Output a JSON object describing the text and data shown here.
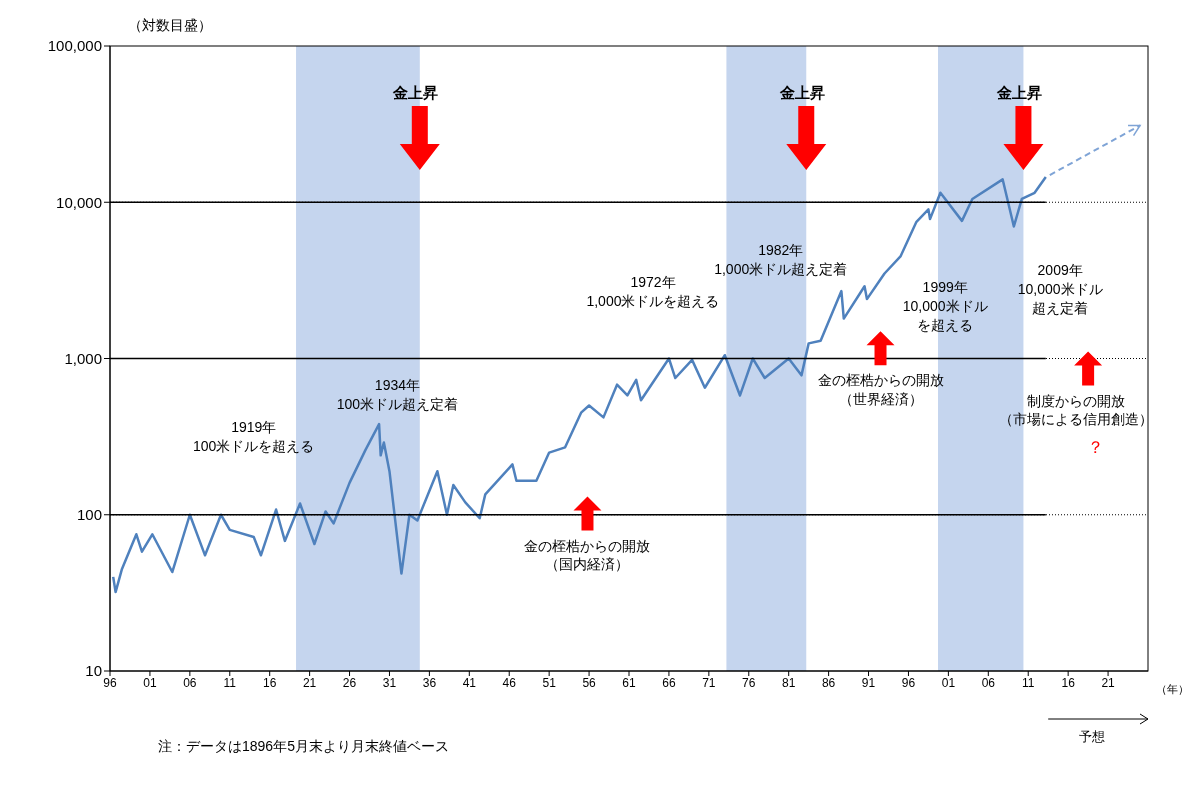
{
  "chart_data": {
    "type": "line",
    "ylabel": "（対数目盛）",
    "xlabel": "（年）",
    "log": "y",
    "marker": "none",
    "grid": "y",
    "xlim": [
      1896,
      2026
    ],
    "xticks": [
      {
        "value": 1896,
        "label": "96"
      },
      {
        "value": 1901,
        "label": "01"
      },
      {
        "value": 1906,
        "label": "06"
      },
      {
        "value": 1911,
        "label": "11"
      },
      {
        "value": 1916,
        "label": "16"
      },
      {
        "value": 1921,
        "label": "21"
      },
      {
        "value": 1926,
        "label": "26"
      },
      {
        "value": 1931,
        "label": "31"
      },
      {
        "value": 1936,
        "label": "36"
      },
      {
        "value": 1941,
        "label": "41"
      },
      {
        "value": 1946,
        "label": "46"
      },
      {
        "value": 1951,
        "label": "51"
      },
      {
        "value": 1956,
        "label": "56"
      },
      {
        "value": 1961,
        "label": "61"
      },
      {
        "value": 1966,
        "label": "66"
      },
      {
        "value": 1971,
        "label": "71"
      },
      {
        "value": 1976,
        "label": "76"
      },
      {
        "value": 1981,
        "label": "81"
      },
      {
        "value": 1986,
        "label": "86"
      },
      {
        "value": 1991,
        "label": "91"
      },
      {
        "value": 1996,
        "label": "96"
      },
      {
        "value": 2001,
        "label": "01"
      },
      {
        "value": 2006,
        "label": "06"
      },
      {
        "value": 2011,
        "label": "11"
      },
      {
        "value": 2016,
        "label": "16"
      },
      {
        "value": 2021,
        "label": "21"
      }
    ],
    "ylim": [
      10,
      100000
    ],
    "yticks": [
      {
        "value": 10,
        "label": "10"
      },
      {
        "value": 100,
        "label": "100"
      },
      {
        "value": 1000,
        "label": "1,000"
      },
      {
        "value": 10000,
        "label": "10,000"
      },
      {
        "value": 100000,
        "label": "100,000"
      }
    ],
    "series": [
      {
        "type": "line",
        "color": "#4f81bd",
        "line_style": "solid",
        "x": [
          1896.4,
          1896.7,
          1897.5,
          1899.3,
          1900,
          1901.3,
          1903.8,
          1906,
          1907.9,
          1909.9,
          1911,
          1914,
          1914.9,
          1916.8,
          1917.9,
          1919.8,
          1921.6,
          1923,
          1924,
          1926,
          1928,
          1929.7,
          1929.9,
          1930.3,
          1931,
          1932.5,
          1933.5,
          1934.5,
          1937,
          1938.2,
          1939,
          1940.5,
          1942.3,
          1943,
          1946.4,
          1946.9,
          1949.4,
          1951,
          1953,
          1955,
          1956,
          1957.8,
          1959.5,
          1960.8,
          1961.9,
          1962.5,
          1966,
          1966.8,
          1968.9,
          1970.5,
          1973,
          1974.9,
          1976.5,
          1978,
          1981,
          1982.6,
          1983.5,
          1985,
          1987.6,
          1987.9,
          1990.5,
          1990.8,
          1993,
          1995,
          1997,
          1998.5,
          1998.7,
          2000,
          2002.7,
          2004,
          2007.8,
          2009.2,
          2010.2,
          2011.8,
          2013.2
        ],
        "values": [
          40,
          32,
          45,
          75,
          58,
          75,
          43,
          100,
          55,
          100,
          80,
          72,
          55,
          108,
          68,
          118,
          65,
          105,
          88,
          160,
          260,
          380,
          240,
          290,
          190,
          42,
          100,
          92,
          190,
          100,
          155,
          120,
          95,
          135,
          210,
          165,
          165,
          250,
          270,
          450,
          500,
          420,
          680,
          580,
          730,
          540,
          1000,
          750,
          980,
          650,
          1050,
          580,
          1000,
          750,
          1000,
          780,
          1250,
          1300,
          2700,
          1800,
          2900,
          2400,
          3500,
          4500,
          7500,
          9000,
          7800,
          11500,
          7600,
          10500,
          14000,
          7000,
          10500,
          11500,
          14500
        ]
      }
    ],
    "bands": [
      {
        "axis": "x",
        "from": 1919.3,
        "to": 1934.8,
        "label": "金上昇",
        "color": "#c5d5ee"
      },
      {
        "axis": "x",
        "from": 1973.2,
        "to": 1983.2,
        "label": "金上昇",
        "color": "#c5d5ee"
      },
      {
        "axis": "x",
        "from": 1999.7,
        "to": 2010.4,
        "label": "金上昇",
        "color": "#c5d5ee"
      }
    ],
    "annotations": [
      "1919年100米ドルを超える",
      "1934年100米ドル超え定着",
      "1972年1,000米ドルを超える",
      "1982年1,000米ドル超え定着",
      "1999年10,000米ドルを超える",
      "2009年10,000米ドル超え定着",
      "金の桎梏からの開放（国内経済）",
      "金の桎梏からの開放（世界経済）",
      "制度からの開放（市場による信用創造）",
      "？",
      "予想",
      "注：データは1896年5月末より月末終値ベース"
    ]
  }
}
